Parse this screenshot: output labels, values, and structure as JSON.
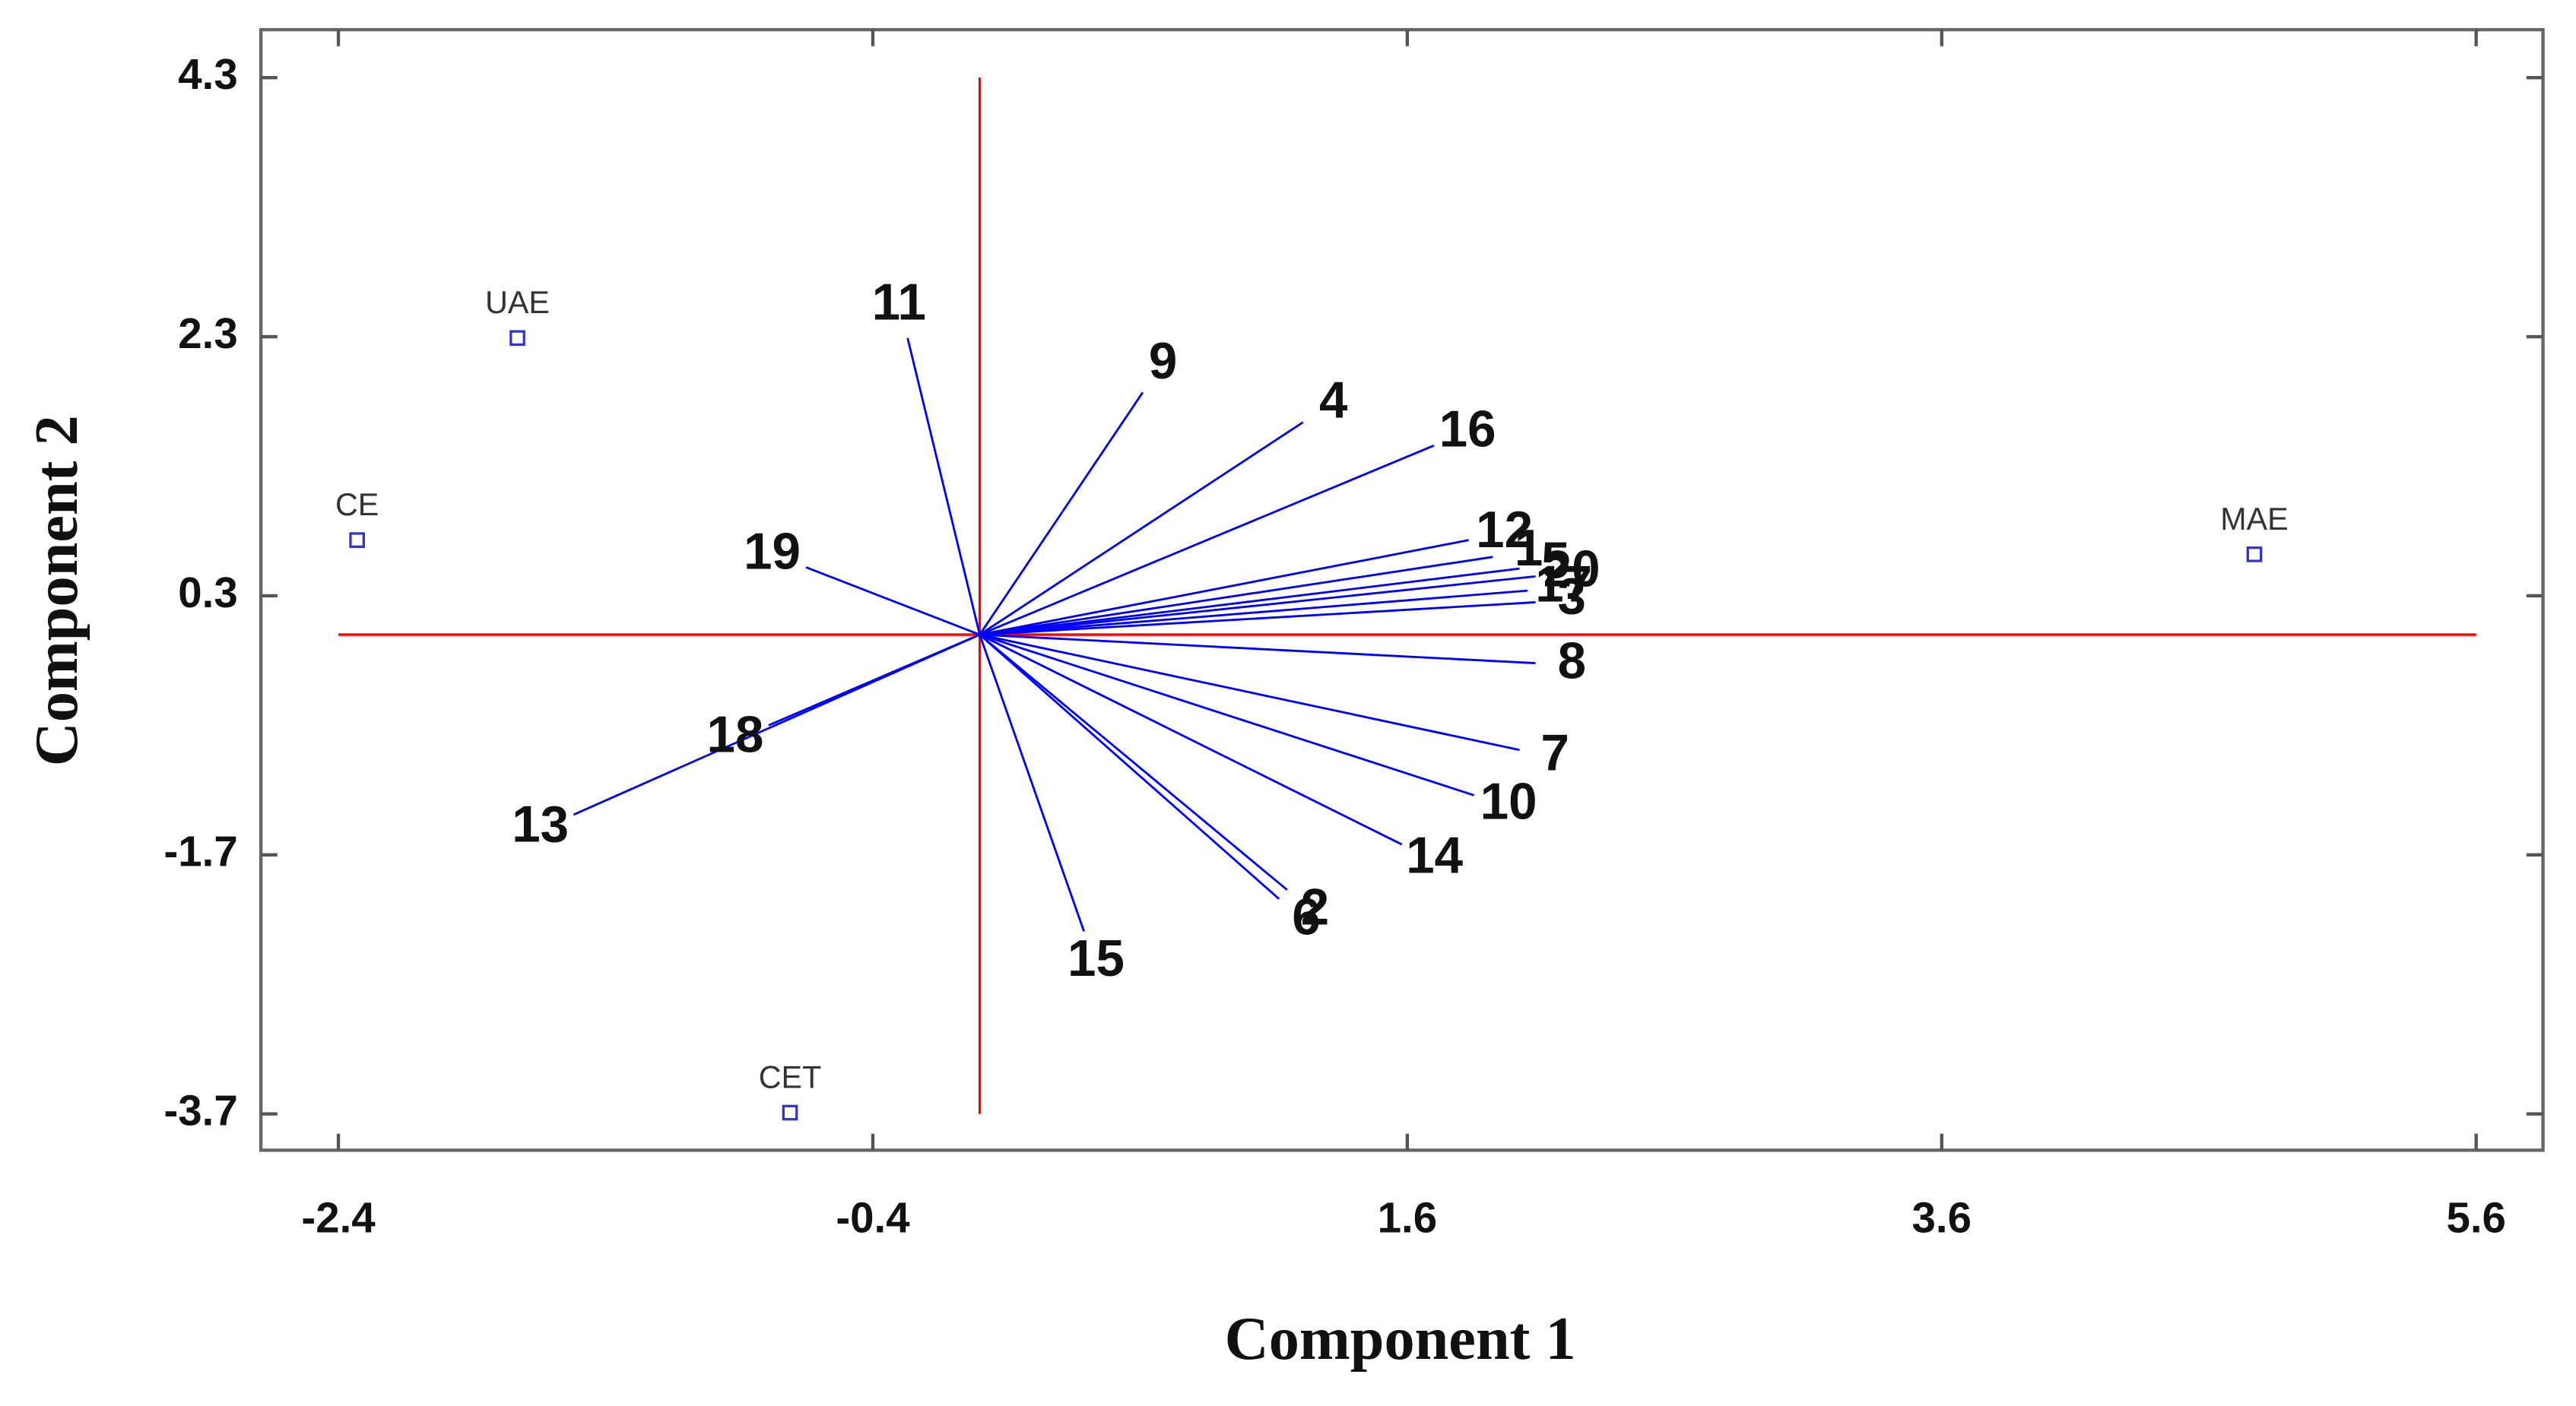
{
  "chart_data": {
    "type": "biplot",
    "x_label": "Component 1",
    "y_label": "Component 2",
    "xlim": [
      -2.69,
      5.85
    ],
    "ylim": [
      -3.98,
      4.67
    ],
    "xticks": [
      -2.4,
      -0.4,
      1.6,
      3.6,
      5.6
    ],
    "yticks": [
      4.3,
      2.3,
      0.3,
      -1.7,
      -3.7
    ],
    "reference_color": "#ff0000",
    "vectors": {
      "color": "#0000ff",
      "names": [
        "11",
        "9",
        "4",
        "16",
        "12",
        "1",
        "5",
        "20",
        "17",
        "3",
        "8",
        "7",
        "10",
        "14",
        "2",
        "6",
        "15",
        "13",
        "18",
        "19"
      ],
      "x": [
        -0.27,
        0.61,
        1.21,
        1.7,
        1.83,
        1.92,
        2.02,
        2.08,
        2.05,
        2.08,
        2.08,
        2.02,
        1.85,
        1.58,
        1.15,
        1.12,
        0.39,
        -1.52,
        -0.79,
        -0.65
      ],
      "y": [
        2.29,
        1.87,
        1.64,
        1.46,
        0.73,
        0.6,
        0.51,
        0.45,
        0.34,
        0.25,
        -0.22,
        -0.89,
        -1.24,
        -1.62,
        -1.97,
        -2.04,
        -2.29,
        -1.39,
        -0.7,
        0.52
      ]
    },
    "points": {
      "color": "#3333cc",
      "names": [
        "UAE",
        "CE",
        "CET",
        "MAE"
      ],
      "x": [
        -1.73,
        -2.33,
        -0.71,
        4.77
      ],
      "y": [
        2.29,
        0.73,
        -3.69,
        0.62
      ]
    }
  }
}
